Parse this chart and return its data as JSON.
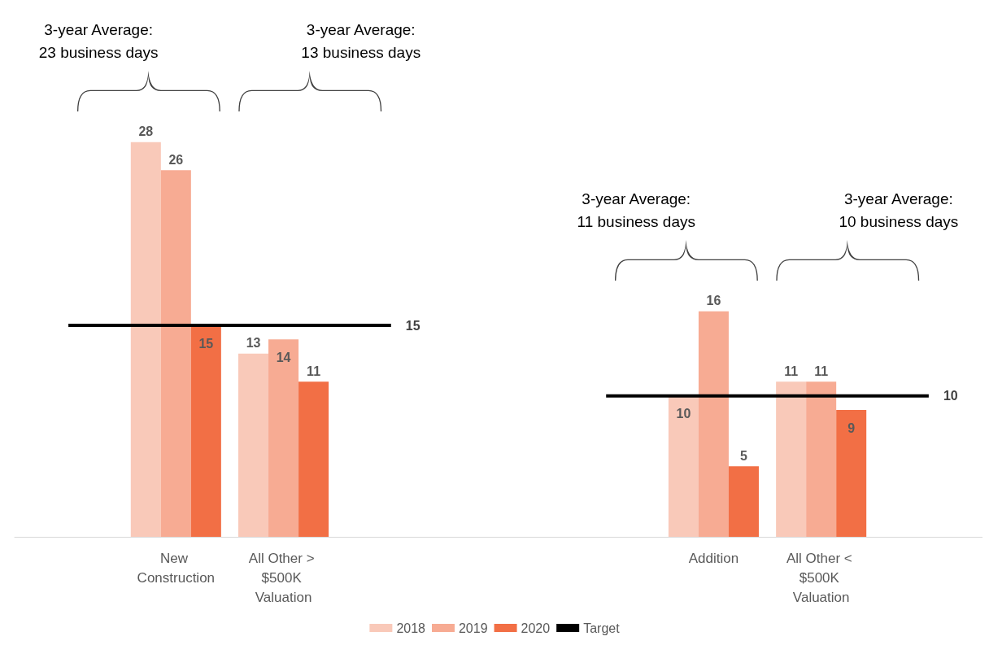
{
  "chart_data": {
    "type": "bar",
    "categories": [
      null,
      "New Construction",
      "All Other > $500K Valuation",
      null,
      null,
      null,
      "Addition",
      "All Other < $500K Valuation",
      null
    ],
    "series": [
      {
        "name": "2018",
        "color": "#f9c9b9",
        "values": [
          null,
          28,
          13,
          null,
          null,
          null,
          10,
          11,
          null
        ]
      },
      {
        "name": "2019",
        "color": "#f7ab93",
        "values": [
          null,
          26,
          14,
          null,
          null,
          null,
          16,
          11,
          null
        ]
      },
      {
        "name": "2020",
        "color": "#f26f45",
        "values": [
          null,
          15,
          11,
          null,
          null,
          null,
          5,
          9,
          null
        ]
      },
      {
        "name": "Target",
        "type": "line",
        "color": "#000000",
        "values": [
          15,
          15,
          15,
          15,
          null,
          10,
          10,
          10,
          10
        ],
        "value_labels": [
          null,
          null,
          null,
          "15",
          null,
          null,
          null,
          null,
          "10"
        ]
      }
    ],
    "data_labels": true,
    "grid": false,
    "legend": "bottom",
    "marker": "none",
    "annotations": [
      "3-year Average:\n23 business days",
      "3-year Average:\n13 business days",
      "3-year Average:\n11 business days",
      "3-year Average:\n10 business days"
    ]
  }
}
